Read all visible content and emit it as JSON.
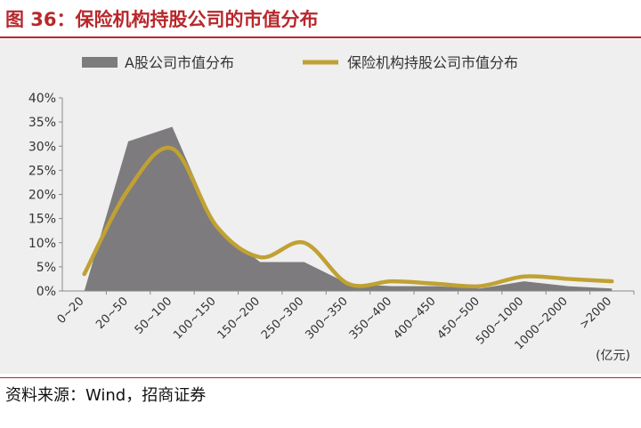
{
  "figure_title": "图 36：保险机构持股公司的市值分布",
  "source_note": "资料来源：Wind，招商证券",
  "colors": {
    "area": "#7d7b7d",
    "line": "#c0a133",
    "title": "#b8282c"
  },
  "chart_data": {
    "type": "area",
    "categories": [
      "0~20",
      "20~50",
      "50~100",
      "100~150",
      "150~200",
      "250~300",
      "300~350",
      "350~400",
      "400~450",
      "450~500",
      "500~1000",
      "1000~2000",
      ">2000"
    ],
    "series": [
      {
        "name": "A股公司市值分布",
        "type": "area",
        "values": [
          0.0,
          31.0,
          34.0,
          13.0,
          6.0,
          6.0,
          1.5,
          1.0,
          1.0,
          0.5,
          2.0,
          1.0,
          0.5
        ]
      },
      {
        "name": "保险机构持股公司市值分布",
        "type": "line",
        "values": [
          3.5,
          21.0,
          29.5,
          13.5,
          7.0,
          10.0,
          1.5,
          2.0,
          1.5,
          1.0,
          3.0,
          2.5,
          2.0
        ]
      }
    ],
    "y_ticks": [
      "0%",
      "5%",
      "10%",
      "15%",
      "20%",
      "25%",
      "30%",
      "35%",
      "40%"
    ],
    "ylim": [
      0,
      40
    ],
    "x_unit": "(亿元)",
    "legend": "top",
    "grid": false
  }
}
